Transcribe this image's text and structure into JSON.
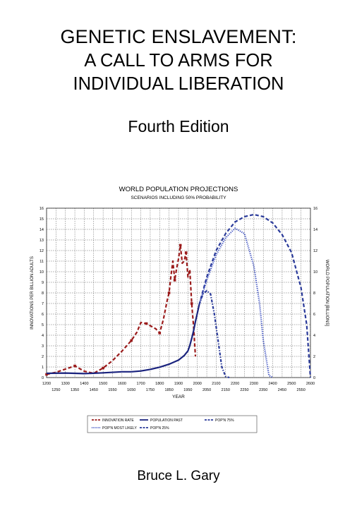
{
  "cover": {
    "title_line1": "GENETIC ENSLAVEMENT:",
    "title_line2": "A CALL TO ARMS FOR",
    "title_line3": "INDIVIDUAL LIBERATION",
    "edition": "Fourth Edition",
    "author": "Bruce L. Gary"
  },
  "chart_data": {
    "type": "line",
    "title": "WORLD POPULATION PROJECTIONS",
    "subtitle": "SCENARIOS INCLUDING 50% PROBABILITY",
    "xlabel": "YEAR",
    "ylabel_left": "INNOVATIONS PER BILLION ADULTS",
    "ylabel_right": "WORLD POPULATION [BILLIONS]",
    "xlim": [
      1200,
      2600
    ],
    "ylim_left": [
      0,
      16
    ],
    "ylim_right": [
      0,
      16
    ],
    "x_ticks_top": [
      "1200",
      "1300",
      "1400",
      "1500",
      "1600",
      "1700",
      "1800",
      "1900",
      "2000",
      "2100",
      "2200",
      "2300",
      "2400",
      "2500",
      "2600"
    ],
    "x_ticks_bottom": [
      "1250",
      "1350",
      "1450",
      "1550",
      "1650",
      "1750",
      "1850",
      "1950",
      "2050",
      "2150",
      "2250",
      "2350",
      "2450",
      "2550"
    ],
    "y_ticks_left": [
      "0",
      "1",
      "2",
      "3",
      "4",
      "5",
      "6",
      "7",
      "8",
      "9",
      "10",
      "11",
      "12",
      "13",
      "14",
      "15",
      "16"
    ],
    "y_ticks_right": [
      "0",
      "2",
      "4",
      "6",
      "8",
      "10",
      "12",
      "14",
      "16"
    ],
    "grid": true,
    "legend_position": "bottom",
    "series": [
      {
        "name": "INNOVATION RATE",
        "color": "#9b1b1b",
        "style": "dashed-squares",
        "axis": "left",
        "x": [
          1200,
          1250,
          1300,
          1350,
          1400,
          1450,
          1500,
          1550,
          1600,
          1650,
          1680,
          1700,
          1730,
          1750,
          1780,
          1800,
          1820,
          1840,
          1850,
          1860,
          1870,
          1880,
          1890,
          1900,
          1910,
          1920,
          1930,
          1940,
          1950,
          1960,
          1970,
          1980,
          1990
        ],
        "y": [
          0.3,
          0.5,
          0.8,
          1.1,
          0.6,
          0.4,
          0.9,
          1.6,
          2.5,
          3.5,
          4.3,
          5.2,
          5.1,
          4.9,
          4.6,
          4.2,
          5.5,
          7.3,
          8.0,
          9.6,
          11.0,
          9.2,
          10.3,
          11.2,
          12.5,
          10.8,
          11.0,
          11.8,
          9.5,
          10.2,
          7.0,
          4.8,
          2.0
        ]
      },
      {
        "name": "POPULATION PAST",
        "color": "#1a237e",
        "style": "solid",
        "axis": "right",
        "x": [
          1200,
          1300,
          1400,
          1500,
          1600,
          1650,
          1700,
          1750,
          1800,
          1850,
          1900,
          1930,
          1950,
          1960,
          1970,
          1980,
          1990,
          2000,
          2010
        ],
        "y": [
          0.4,
          0.43,
          0.37,
          0.45,
          0.55,
          0.55,
          0.62,
          0.77,
          0.98,
          1.26,
          1.65,
          2.07,
          2.52,
          3.02,
          3.69,
          4.43,
          5.3,
          6.08,
          6.9
        ]
      },
      {
        "name": "POP'N 75%",
        "color": "#2a3a9a",
        "style": "dashed",
        "axis": "right",
        "x": [
          2010,
          2050,
          2100,
          2150,
          2200,
          2250,
          2300,
          2350,
          2400,
          2450,
          2500,
          2550,
          2580,
          2600
        ],
        "y": [
          6.9,
          9.5,
          12.0,
          13.6,
          14.7,
          15.2,
          15.4,
          15.2,
          14.6,
          13.5,
          11.8,
          8.5,
          5.0,
          0.0
        ]
      },
      {
        "name": "POP'N MOST LIKELY",
        "color": "#3b4fc0",
        "style": "dotted",
        "axis": "right",
        "x": [
          2010,
          2050,
          2100,
          2150,
          2200,
          2250,
          2300,
          2330,
          2350,
          2380,
          2400
        ],
        "y": [
          6.9,
          9.2,
          11.6,
          13.2,
          14.1,
          13.6,
          10.5,
          7.0,
          3.5,
          0.2,
          0.0
        ]
      },
      {
        "name": "POP'N 25%",
        "color": "#2a3a9a",
        "style": "dashdot",
        "axis": "right",
        "x": [
          2010,
          2030,
          2050,
          2070,
          2090,
          2110,
          2130,
          2150,
          2170
        ],
        "y": [
          6.9,
          7.9,
          8.2,
          7.9,
          6.0,
          3.5,
          1.0,
          0.1,
          0.0
        ]
      }
    ]
  }
}
